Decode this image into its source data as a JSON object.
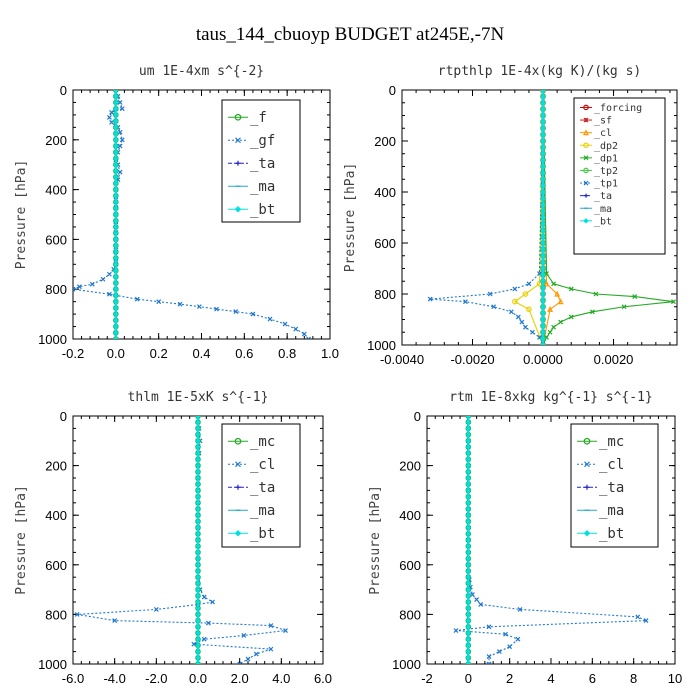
{
  "figure": {
    "title": "taus_144_cbuoyp  BUDGET at245E,-7N"
  },
  "chart_data": [
    {
      "type": "line",
      "title": "um  1E-4xm s^{-2}",
      "ylabel": "Pressure [hPa]",
      "xlim": [
        -0.2,
        1.0
      ],
      "ylim": [
        1000,
        0
      ],
      "xticks": [
        -0.2,
        0.0,
        0.2,
        0.4,
        0.6,
        0.8,
        1.0
      ],
      "xtick_labels": [
        "-0.2",
        "0.0",
        "0.2",
        "0.4",
        "0.6",
        "0.8",
        "1.0"
      ],
      "yticks": [
        0,
        200,
        400,
        600,
        800,
        1000
      ],
      "ytick_labels": [
        "0",
        "200",
        "400",
        "600",
        "800",
        "1000"
      ],
      "legend": "top-right",
      "series": [
        {
          "name": "_f",
          "color": "#22aa22",
          "style": "solid",
          "marker": "circle",
          "x": [
            0,
            0
          ],
          "y": [
            0,
            1000
          ]
        },
        {
          "name": "_gf",
          "color": "#1f77d0",
          "style": "dotted",
          "marker": "x",
          "x": [
            0.0,
            0.01,
            0.02,
            0.03,
            -0.02,
            -0.03,
            -0.02,
            0.01,
            0.02,
            0.03,
            0.02,
            0.01,
            0.0,
            0.01,
            0.02,
            0.01,
            0.0,
            0.0,
            0.0,
            0.0,
            0.0,
            0.0,
            0.0,
            0.0,
            0.0,
            0.0,
            0.0,
            -0.01,
            -0.03,
            -0.06,
            -0.11,
            -0.17,
            -0.2,
            -0.03,
            0.1,
            0.2,
            0.3,
            0.39,
            0.47,
            0.56,
            0.64,
            0.72,
            0.79,
            0.84,
            0.88,
            0.9
          ],
          "y": [
            0,
            25,
            50,
            75,
            90,
            110,
            130,
            150,
            170,
            200,
            225,
            250,
            280,
            300,
            330,
            360,
            400,
            430,
            460,
            500,
            530,
            560,
            600,
            630,
            650,
            680,
            700,
            720,
            740,
            760,
            780,
            790,
            800,
            820,
            840,
            850,
            860,
            870,
            880,
            890,
            900,
            920,
            940,
            960,
            980,
            1000
          ]
        },
        {
          "name": "_ta",
          "color": "#2222cc",
          "style": "dashed",
          "marker": "plus",
          "x": [
            0,
            0
          ],
          "y": [
            0,
            1000
          ]
        },
        {
          "name": "_ma",
          "color": "#22aacc",
          "style": "solid",
          "marker": "dash",
          "x": [
            0,
            0
          ],
          "y": [
            0,
            1000
          ]
        },
        {
          "name": "_bt",
          "color": "#00e0e0",
          "style": "solid",
          "marker": "diamond",
          "x": [
            0,
            0
          ],
          "y": [
            0,
            1000
          ]
        }
      ]
    },
    {
      "type": "line",
      "title": "rtpthlp  1E-4x(kg K)/(kg s)",
      "ylabel": "Pressure [hPa]",
      "xlim": [
        -0.004,
        0.0038
      ],
      "ylim": [
        1000,
        0
      ],
      "xticks": [
        -0.004,
        -0.002,
        0.0,
        0.002
      ],
      "xtick_labels": [
        "-0.0040",
        "-0.0020",
        "0.0000",
        "0.0020"
      ],
      "yticks": [
        0,
        200,
        400,
        600,
        800,
        1000
      ],
      "ytick_labels": [
        "0",
        "200",
        "400",
        "600",
        "800",
        "1000"
      ],
      "legend": "top-right",
      "series": [
        {
          "name": "_forcing",
          "color": "#cc0000",
          "style": "solid",
          "marker": "circle",
          "x": [
            0,
            0
          ],
          "y": [
            0,
            1000
          ]
        },
        {
          "name": "_sf",
          "color": "#cc2222",
          "style": "solid",
          "marker": "star",
          "x": [
            0,
            0
          ],
          "y": [
            0,
            1000
          ]
        },
        {
          "name": "_cl",
          "color": "#ff9900",
          "style": "solid",
          "marker": "triangle",
          "x": [
            0,
            0.0001,
            0.0004,
            0.0005,
            0.0002,
            0
          ],
          "y": [
            0,
            760,
            800,
            830,
            860,
            1000
          ]
        },
        {
          "name": "_dp2",
          "color": "#e8d000",
          "style": "solid",
          "marker": "circle",
          "x": [
            0,
            -0.0001,
            -0.0005,
            -0.0008,
            -0.0004,
            0
          ],
          "y": [
            0,
            760,
            800,
            830,
            860,
            1000
          ]
        },
        {
          "name": "_dp1",
          "color": "#22aa22",
          "style": "solid",
          "marker": "x",
          "x": [
            0,
            0.0001,
            0.0003,
            0.0008,
            0.0015,
            0.0026,
            0.0037,
            0.0023,
            0.0014,
            0.0008,
            0.0005,
            0.0003,
            0.0002,
            0.0001,
            0
          ],
          "y": [
            0,
            720,
            760,
            780,
            800,
            810,
            830,
            850,
            870,
            890,
            910,
            930,
            950,
            970,
            1000
          ]
        },
        {
          "name": "_tp2",
          "color": "#44cc44",
          "style": "solid",
          "marker": "circle",
          "x": [
            0,
            0
          ],
          "y": [
            0,
            1000
          ]
        },
        {
          "name": "_tp1",
          "color": "#1f77d0",
          "style": "dotted",
          "marker": "x",
          "x": [
            0,
            -0.0001,
            -0.0004,
            -0.0008,
            -0.0015,
            -0.0032,
            -0.0022,
            -0.0014,
            -0.0009,
            -0.0007,
            -0.0006,
            -0.0005,
            -0.0003,
            -0.0001,
            0
          ],
          "y": [
            0,
            720,
            760,
            780,
            800,
            820,
            830,
            850,
            870,
            890,
            910,
            930,
            950,
            970,
            1000
          ]
        },
        {
          "name": "_ta",
          "color": "#2222cc",
          "style": "dashed",
          "marker": "plus",
          "x": [
            0,
            0
          ],
          "y": [
            0,
            1000
          ]
        },
        {
          "name": "_ma",
          "color": "#22aacc",
          "style": "solid",
          "marker": "dash",
          "x": [
            0,
            0
          ],
          "y": [
            0,
            1000
          ]
        },
        {
          "name": "_bt",
          "color": "#00e0e0",
          "style": "solid",
          "marker": "diamond",
          "x": [
            0,
            0
          ],
          "y": [
            0,
            1000
          ]
        }
      ]
    },
    {
      "type": "line",
      "title": "thlm  1E-5xK s^{-1}",
      "ylabel": "Pressure [hPa]",
      "xlim": [
        -6.0,
        6.0
      ],
      "ylim": [
        1000,
        0
      ],
      "xticks": [
        -6.0,
        -4.0,
        -2.0,
        0.0,
        2.0,
        4.0,
        6.0
      ],
      "xtick_labels": [
        "-6.0",
        "-4.0",
        "-2.0",
        "0.0",
        "2.0",
        "4.0",
        "6.0"
      ],
      "yticks": [
        0,
        200,
        400,
        600,
        800,
        1000
      ],
      "ytick_labels": [
        "0",
        "200",
        "400",
        "600",
        "800",
        "1000"
      ],
      "legend": "top-right",
      "series": [
        {
          "name": "_mc",
          "color": "#22aa22",
          "style": "solid",
          "marker": "circle",
          "x": [
            0,
            0
          ],
          "y": [
            0,
            1000
          ]
        },
        {
          "name": "_cl",
          "color": "#1f77d0",
          "style": "dotted",
          "marker": "x",
          "x": [
            0.0,
            0.05,
            0.1,
            0.05,
            0.0,
            0.0,
            0.0,
            0.0,
            0.0,
            0.0,
            0.0,
            0.0,
            0.1,
            0.3,
            0.7,
            0.0,
            -2.0,
            -5.8,
            -4.0,
            0.5,
            3.5,
            4.2,
            2.2,
            0.3,
            -0.2,
            3.5,
            2.8,
            2.4,
            2.0
          ],
          "y": [
            0,
            50,
            100,
            150,
            200,
            250,
            300,
            350,
            400,
            450,
            500,
            600,
            700,
            730,
            750,
            760,
            780,
            800,
            825,
            835,
            845,
            865,
            885,
            900,
            920,
            940,
            960,
            980,
            1000
          ]
        },
        {
          "name": "_ta",
          "color": "#2222cc",
          "style": "dashed",
          "marker": "plus",
          "x": [
            0,
            0
          ],
          "y": [
            0,
            1000
          ]
        },
        {
          "name": "_ma",
          "color": "#22aacc",
          "style": "solid",
          "marker": "dash",
          "x": [
            0,
            0
          ],
          "y": [
            0,
            1000
          ]
        },
        {
          "name": "_bt",
          "color": "#00e0e0",
          "style": "solid",
          "marker": "diamond",
          "x": [
            0,
            0
          ],
          "y": [
            0,
            1000
          ]
        }
      ]
    },
    {
      "type": "line",
      "title": "rtm  1E-8xkg kg^{-1} s^{-1}",
      "ylabel": "Pressure [hPa]",
      "xlim": [
        -2,
        10
      ],
      "ylim": [
        1000,
        0
      ],
      "xticks": [
        -2,
        0,
        2,
        4,
        6,
        8,
        10
      ],
      "xtick_labels": [
        "-2",
        "0",
        "2",
        "4",
        "6",
        "8",
        "10"
      ],
      "yticks": [
        0,
        200,
        400,
        600,
        800,
        1000
      ],
      "ytick_labels": [
        "0",
        "200",
        "400",
        "600",
        "800",
        "1000"
      ],
      "legend": "top-right",
      "series": [
        {
          "name": "_mc",
          "color": "#22aa22",
          "style": "solid",
          "marker": "circle",
          "x": [
            0,
            0
          ],
          "y": [
            0,
            1000
          ]
        },
        {
          "name": "_cl",
          "color": "#1f77d0",
          "style": "dotted",
          "marker": "x",
          "x": [
            0,
            0,
            0,
            0,
            0,
            0,
            0,
            0,
            0.05,
            0.1,
            0.2,
            0.4,
            0.6,
            2.5,
            8.2,
            8.6,
            1.0,
            -0.6,
            1.8,
            2.4,
            2.0,
            1.5,
            1.0,
            1.0
          ],
          "y": [
            0,
            100,
            200,
            300,
            400,
            500,
            600,
            650,
            660,
            690,
            720,
            740,
            760,
            780,
            810,
            825,
            850,
            865,
            880,
            900,
            930,
            950,
            970,
            1000
          ]
        },
        {
          "name": "_ta",
          "color": "#2222cc",
          "style": "dashed",
          "marker": "plus",
          "x": [
            0,
            0
          ],
          "y": [
            0,
            1000
          ]
        },
        {
          "name": "_ma",
          "color": "#22aacc",
          "style": "solid",
          "marker": "dash",
          "x": [
            0,
            0
          ],
          "y": [
            0,
            1000
          ]
        },
        {
          "name": "_bt",
          "color": "#00e0e0",
          "style": "solid",
          "marker": "diamond",
          "x": [
            0,
            0
          ],
          "y": [
            0,
            1000
          ]
        }
      ]
    }
  ]
}
